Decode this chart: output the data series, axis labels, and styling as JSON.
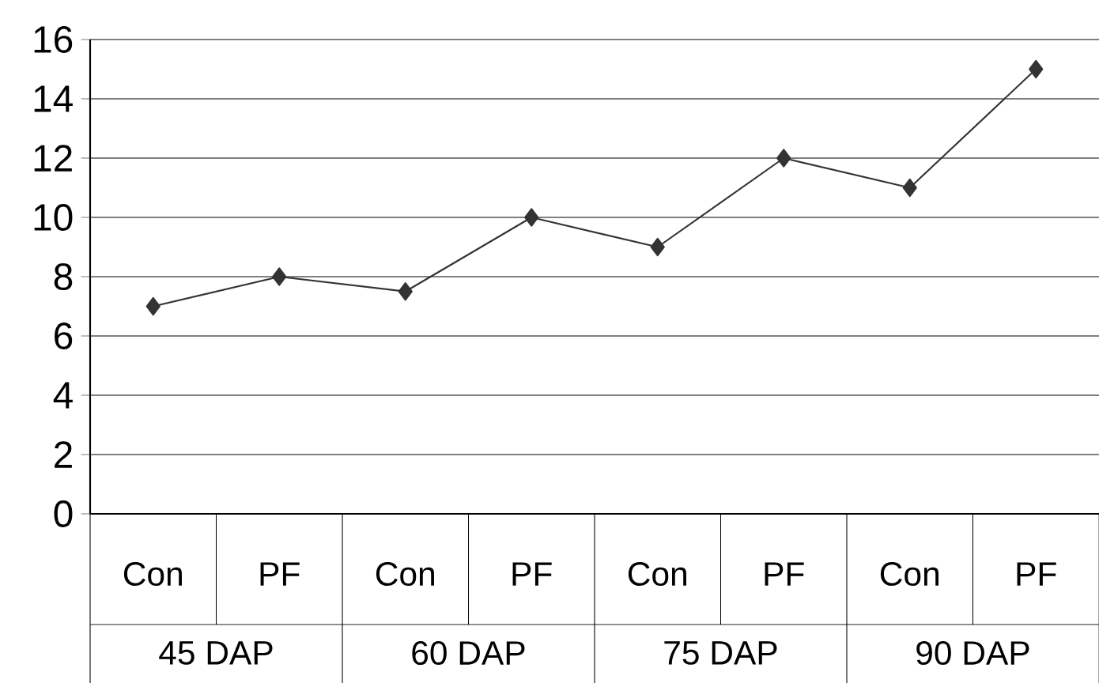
{
  "chart_data": {
    "type": "line",
    "categories": [
      "Con",
      "PF",
      "Con",
      "PF",
      "Con",
      "PF",
      "Con",
      "PF"
    ],
    "annotations": [
      "45 DAP",
      "60 DAP",
      "75 DAP",
      "90 DAP"
    ],
    "series": [
      {
        "color": "#333333",
        "values": [
          7,
          8,
          7.5,
          10,
          9,
          12,
          11,
          15
        ]
      }
    ],
    "ylim": [
      0,
      16
    ],
    "yticks": [
      0,
      2,
      4,
      6,
      8,
      10,
      12,
      14,
      16
    ],
    "grid": "y",
    "marker": "diamond",
    "line_style": "solid"
  }
}
